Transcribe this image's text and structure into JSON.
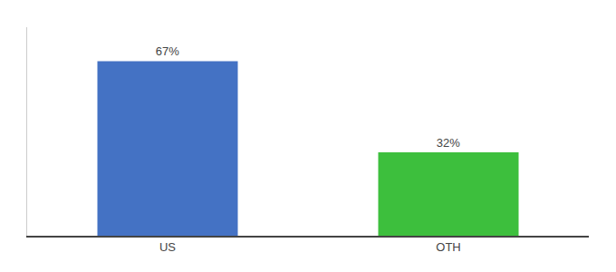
{
  "chart_data": {
    "type": "bar",
    "categories": [
      "US",
      "OTH"
    ],
    "values": [
      67,
      32
    ],
    "value_labels": [
      "67%",
      "32%"
    ],
    "data_labels": true,
    "colors": [
      "#4472c4",
      "#3dbf3d"
    ],
    "ylim": [
      0,
      80
    ],
    "grid": false,
    "tick_labels": "x"
  }
}
